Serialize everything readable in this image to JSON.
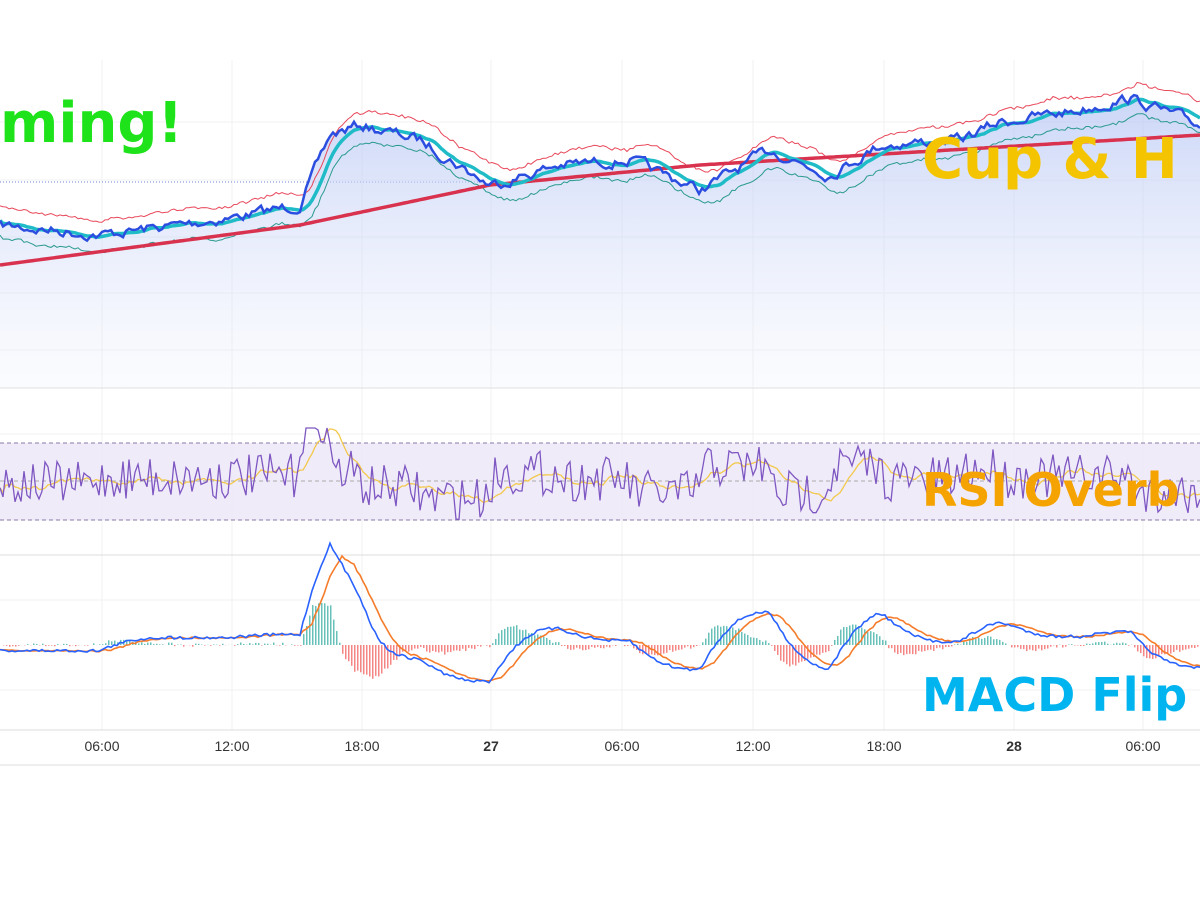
{
  "annotations": {
    "top_left": "ming!",
    "main_pane": "Cup & H",
    "rsi_pane": "RSI Overb",
    "macd_pane": "MACD Flip"
  },
  "time_axis": [
    "06:00",
    "12:00",
    "18:00",
    "27",
    "06:00",
    "12:00",
    "18:00",
    "28",
    "06:00"
  ]
}
